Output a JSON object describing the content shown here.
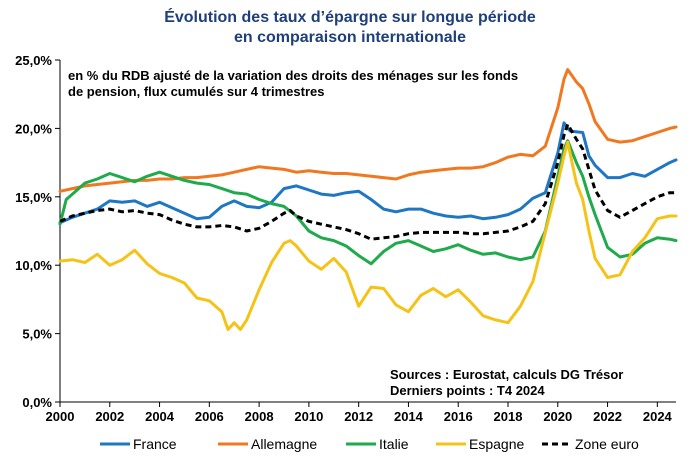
{
  "chart_data": {
    "type": "line",
    "title_line1": "Évolution des taux d’épargne sur longue période",
    "title_line2": "en comparaison internationale",
    "note_line1": "en % du RDB ajusté de la variation des droits des ménages sur les fonds",
    "note_line2": "de pension, flux cumulés sur 4 trimestres",
    "source_line1": "Sources : Eurostat, calculs DG Trésor",
    "source_line2": "Derniers points : T4 2024",
    "xlim": [
      2000,
      2024.75
    ],
    "ylim": [
      0,
      25
    ],
    "x_ticks": [
      {
        "value": 2000,
        "label": "2000"
      },
      {
        "value": 2002,
        "label": "2002"
      },
      {
        "value": 2004,
        "label": "2004"
      },
      {
        "value": 2006,
        "label": "2006"
      },
      {
        "value": 2008,
        "label": "2008"
      },
      {
        "value": 2010,
        "label": "2010"
      },
      {
        "value": 2012,
        "label": "2012"
      },
      {
        "value": 2014,
        "label": "2014"
      },
      {
        "value": 2016,
        "label": "2016"
      },
      {
        "value": 2018,
        "label": "2018"
      },
      {
        "value": 2020,
        "label": "2020"
      },
      {
        "value": 2022,
        "label": "2022"
      },
      {
        "value": 2024,
        "label": "2024"
      }
    ],
    "y_ticks": [
      {
        "value": 0,
        "label": "0,0%"
      },
      {
        "value": 5,
        "label": "5,0%"
      },
      {
        "value": 10,
        "label": "10,0%"
      },
      {
        "value": 15,
        "label": "15,0%"
      },
      {
        "value": 20,
        "label": "20,0%"
      },
      {
        "value": 25,
        "label": "25,0%"
      }
    ],
    "grid": false,
    "legend_position": "bottom",
    "series": [
      {
        "name": "France",
        "color": "#1f77c4",
        "dashed": false,
        "points": [
          [
            2000,
            13.1
          ],
          [
            2000.5,
            13.5
          ],
          [
            2001,
            13.8
          ],
          [
            2001.5,
            14.1
          ],
          [
            2002,
            14.7
          ],
          [
            2002.5,
            14.6
          ],
          [
            2003,
            14.7
          ],
          [
            2003.5,
            14.3
          ],
          [
            2004,
            14.6
          ],
          [
            2004.5,
            14.2
          ],
          [
            2005,
            13.8
          ],
          [
            2005.5,
            13.4
          ],
          [
            2006,
            13.5
          ],
          [
            2006.5,
            14.3
          ],
          [
            2007,
            14.7
          ],
          [
            2007.5,
            14.3
          ],
          [
            2008,
            14.2
          ],
          [
            2008.5,
            14.6
          ],
          [
            2009,
            15.6
          ],
          [
            2009.5,
            15.8
          ],
          [
            2010,
            15.5
          ],
          [
            2010.5,
            15.2
          ],
          [
            2011,
            15.1
          ],
          [
            2011.5,
            15.3
          ],
          [
            2012,
            15.4
          ],
          [
            2012.5,
            14.8
          ],
          [
            2013,
            14.1
          ],
          [
            2013.5,
            13.9
          ],
          [
            2014,
            14.1
          ],
          [
            2014.5,
            14.1
          ],
          [
            2015,
            13.8
          ],
          [
            2015.5,
            13.6
          ],
          [
            2016,
            13.5
          ],
          [
            2016.5,
            13.6
          ],
          [
            2017,
            13.4
          ],
          [
            2017.5,
            13.5
          ],
          [
            2018,
            13.7
          ],
          [
            2018.5,
            14.1
          ],
          [
            2019,
            14.9
          ],
          [
            2019.5,
            15.3
          ],
          [
            2020,
            18.2
          ],
          [
            2020.25,
            20.4
          ],
          [
            2020.5,
            19.8
          ],
          [
            2021,
            19.7
          ],
          [
            2021.25,
            18.0
          ],
          [
            2021.5,
            17.3
          ],
          [
            2022,
            16.4
          ],
          [
            2022.5,
            16.4
          ],
          [
            2023,
            16.7
          ],
          [
            2023.5,
            16.5
          ],
          [
            2024,
            17.0
          ],
          [
            2024.5,
            17.5
          ],
          [
            2024.75,
            17.7
          ]
        ]
      },
      {
        "name": "Allemagne",
        "color": "#f07820",
        "dashed": false,
        "points": [
          [
            2000,
            15.4
          ],
          [
            2000.5,
            15.6
          ],
          [
            2001,
            15.8
          ],
          [
            2001.5,
            15.9
          ],
          [
            2002,
            16.0
          ],
          [
            2002.5,
            16.1
          ],
          [
            2003,
            16.2
          ],
          [
            2003.5,
            16.2
          ],
          [
            2004,
            16.3
          ],
          [
            2004.5,
            16.3
          ],
          [
            2005,
            16.4
          ],
          [
            2005.5,
            16.4
          ],
          [
            2006,
            16.5
          ],
          [
            2006.5,
            16.6
          ],
          [
            2007,
            16.8
          ],
          [
            2007.5,
            17.0
          ],
          [
            2008,
            17.2
          ],
          [
            2008.5,
            17.1
          ],
          [
            2009,
            17.0
          ],
          [
            2009.5,
            16.8
          ],
          [
            2010,
            16.9
          ],
          [
            2010.5,
            16.8
          ],
          [
            2011,
            16.7
          ],
          [
            2011.5,
            16.7
          ],
          [
            2012,
            16.6
          ],
          [
            2012.5,
            16.5
          ],
          [
            2013,
            16.4
          ],
          [
            2013.5,
            16.3
          ],
          [
            2014,
            16.6
          ],
          [
            2014.5,
            16.8
          ],
          [
            2015,
            16.9
          ],
          [
            2015.5,
            17.0
          ],
          [
            2016,
            17.1
          ],
          [
            2016.5,
            17.1
          ],
          [
            2017,
            17.2
          ],
          [
            2017.5,
            17.5
          ],
          [
            2018,
            17.9
          ],
          [
            2018.5,
            18.1
          ],
          [
            2019,
            18.0
          ],
          [
            2019.5,
            18.7
          ],
          [
            2020,
            21.5
          ],
          [
            2020.25,
            23.6
          ],
          [
            2020.4,
            24.3
          ],
          [
            2020.75,
            23.4
          ],
          [
            2021,
            22.9
          ],
          [
            2021.25,
            21.8
          ],
          [
            2021.5,
            20.5
          ],
          [
            2022,
            19.2
          ],
          [
            2022.5,
            19.0
          ],
          [
            2023,
            19.1
          ],
          [
            2023.5,
            19.4
          ],
          [
            2024,
            19.7
          ],
          [
            2024.5,
            20.0
          ],
          [
            2024.75,
            20.1
          ]
        ]
      },
      {
        "name": "Italie",
        "color": "#1faa4c",
        "dashed": false,
        "points": [
          [
            2000,
            13.0
          ],
          [
            2000.25,
            14.8
          ],
          [
            2000.5,
            15.2
          ],
          [
            2001,
            16.0
          ],
          [
            2001.5,
            16.3
          ],
          [
            2002,
            16.7
          ],
          [
            2002.5,
            16.4
          ],
          [
            2003,
            16.1
          ],
          [
            2003.5,
            16.5
          ],
          [
            2004,
            16.8
          ],
          [
            2004.5,
            16.5
          ],
          [
            2005,
            16.2
          ],
          [
            2005.5,
            16.0
          ],
          [
            2006,
            15.9
          ],
          [
            2006.5,
            15.6
          ],
          [
            2007,
            15.3
          ],
          [
            2007.5,
            15.2
          ],
          [
            2008,
            14.8
          ],
          [
            2008.5,
            14.5
          ],
          [
            2009,
            14.3
          ],
          [
            2009.5,
            13.6
          ],
          [
            2010,
            12.5
          ],
          [
            2010.5,
            12.0
          ],
          [
            2011,
            11.8
          ],
          [
            2011.5,
            11.4
          ],
          [
            2012,
            10.7
          ],
          [
            2012.5,
            10.1
          ],
          [
            2013,
            11.0
          ],
          [
            2013.5,
            11.6
          ],
          [
            2014,
            11.8
          ],
          [
            2014.5,
            11.4
          ],
          [
            2015,
            11.0
          ],
          [
            2015.5,
            11.2
          ],
          [
            2016,
            11.5
          ],
          [
            2016.5,
            11.1
          ],
          [
            2017,
            10.8
          ],
          [
            2017.5,
            10.9
          ],
          [
            2018,
            10.6
          ],
          [
            2018.5,
            10.4
          ],
          [
            2019,
            10.6
          ],
          [
            2019.5,
            12.5
          ],
          [
            2020,
            16.5
          ],
          [
            2020.25,
            18.5
          ],
          [
            2020.4,
            19.1
          ],
          [
            2020.75,
            17.5
          ],
          [
            2021,
            16.5
          ],
          [
            2021.25,
            15.0
          ],
          [
            2021.5,
            13.7
          ],
          [
            2022,
            11.3
          ],
          [
            2022.5,
            10.6
          ],
          [
            2023,
            10.8
          ],
          [
            2023.5,
            11.6
          ],
          [
            2024,
            12.0
          ],
          [
            2024.5,
            11.9
          ],
          [
            2024.75,
            11.8
          ]
        ]
      },
      {
        "name": "Espagne",
        "color": "#f5c318",
        "dashed": false,
        "points": [
          [
            2000,
            10.3
          ],
          [
            2000.5,
            10.4
          ],
          [
            2001,
            10.2
          ],
          [
            2001.5,
            10.8
          ],
          [
            2002,
            10.0
          ],
          [
            2002.5,
            10.4
          ],
          [
            2003,
            11.1
          ],
          [
            2003.5,
            10.1
          ],
          [
            2004,
            9.4
          ],
          [
            2004.5,
            9.1
          ],
          [
            2005,
            8.7
          ],
          [
            2005.5,
            7.6
          ],
          [
            2006,
            7.4
          ],
          [
            2006.5,
            6.6
          ],
          [
            2006.75,
            5.3
          ],
          [
            2007,
            5.8
          ],
          [
            2007.25,
            5.3
          ],
          [
            2007.5,
            6.0
          ],
          [
            2008,
            8.2
          ],
          [
            2008.5,
            10.2
          ],
          [
            2009,
            11.6
          ],
          [
            2009.25,
            11.8
          ],
          [
            2009.5,
            11.4
          ],
          [
            2010,
            10.3
          ],
          [
            2010.5,
            9.7
          ],
          [
            2011,
            10.5
          ],
          [
            2011.5,
            9.5
          ],
          [
            2012,
            7.0
          ],
          [
            2012.5,
            8.4
          ],
          [
            2013,
            8.3
          ],
          [
            2013.5,
            7.1
          ],
          [
            2014,
            6.6
          ],
          [
            2014.5,
            7.8
          ],
          [
            2015,
            8.3
          ],
          [
            2015.5,
            7.7
          ],
          [
            2016,
            8.2
          ],
          [
            2016.5,
            7.3
          ],
          [
            2017,
            6.3
          ],
          [
            2017.5,
            6.0
          ],
          [
            2018,
            5.8
          ],
          [
            2018.5,
            7.0
          ],
          [
            2019,
            8.8
          ],
          [
            2019.5,
            12.4
          ],
          [
            2020,
            16.0
          ],
          [
            2020.25,
            18.0
          ],
          [
            2020.4,
            19.0
          ],
          [
            2020.75,
            16.0
          ],
          [
            2021,
            14.8
          ],
          [
            2021.25,
            12.5
          ],
          [
            2021.5,
            10.5
          ],
          [
            2022,
            9.1
          ],
          [
            2022.5,
            9.3
          ],
          [
            2023,
            11.0
          ],
          [
            2023.5,
            12.0
          ],
          [
            2024,
            13.4
          ],
          [
            2024.5,
            13.6
          ],
          [
            2024.75,
            13.6
          ]
        ]
      },
      {
        "name": "Zone euro",
        "color": "#000000",
        "dashed": true,
        "points": [
          [
            2000,
            13.2
          ],
          [
            2000.5,
            13.6
          ],
          [
            2001,
            13.8
          ],
          [
            2001.5,
            14.0
          ],
          [
            2002,
            14.1
          ],
          [
            2002.5,
            13.9
          ],
          [
            2003,
            14.0
          ],
          [
            2003.5,
            13.8
          ],
          [
            2004,
            13.7
          ],
          [
            2004.5,
            13.3
          ],
          [
            2005,
            13.0
          ],
          [
            2005.5,
            12.8
          ],
          [
            2006,
            12.8
          ],
          [
            2006.5,
            12.9
          ],
          [
            2007,
            12.8
          ],
          [
            2007.5,
            12.5
          ],
          [
            2008,
            12.7
          ],
          [
            2008.5,
            13.2
          ],
          [
            2009,
            13.8
          ],
          [
            2009.25,
            14.0
          ],
          [
            2009.5,
            13.6
          ],
          [
            2010,
            13.2
          ],
          [
            2010.5,
            13.0
          ],
          [
            2011,
            12.8
          ],
          [
            2011.5,
            12.6
          ],
          [
            2012,
            12.3
          ],
          [
            2012.5,
            11.9
          ],
          [
            2013,
            12.0
          ],
          [
            2013.5,
            12.1
          ],
          [
            2014,
            12.3
          ],
          [
            2014.5,
            12.4
          ],
          [
            2015,
            12.4
          ],
          [
            2015.5,
            12.4
          ],
          [
            2016,
            12.4
          ],
          [
            2016.5,
            12.3
          ],
          [
            2017,
            12.3
          ],
          [
            2017.5,
            12.4
          ],
          [
            2018,
            12.5
          ],
          [
            2018.5,
            12.8
          ],
          [
            2019,
            13.2
          ],
          [
            2019.5,
            14.5
          ],
          [
            2020,
            17.5
          ],
          [
            2020.25,
            19.5
          ],
          [
            2020.4,
            20.3
          ],
          [
            2020.75,
            19.2
          ],
          [
            2021,
            18.5
          ],
          [
            2021.25,
            17.0
          ],
          [
            2021.5,
            15.5
          ],
          [
            2022,
            14.0
          ],
          [
            2022.5,
            13.5
          ],
          [
            2023,
            14.0
          ],
          [
            2023.5,
            14.5
          ],
          [
            2024,
            15.0
          ],
          [
            2024.5,
            15.3
          ],
          [
            2024.75,
            15.3
          ]
        ]
      }
    ]
  }
}
